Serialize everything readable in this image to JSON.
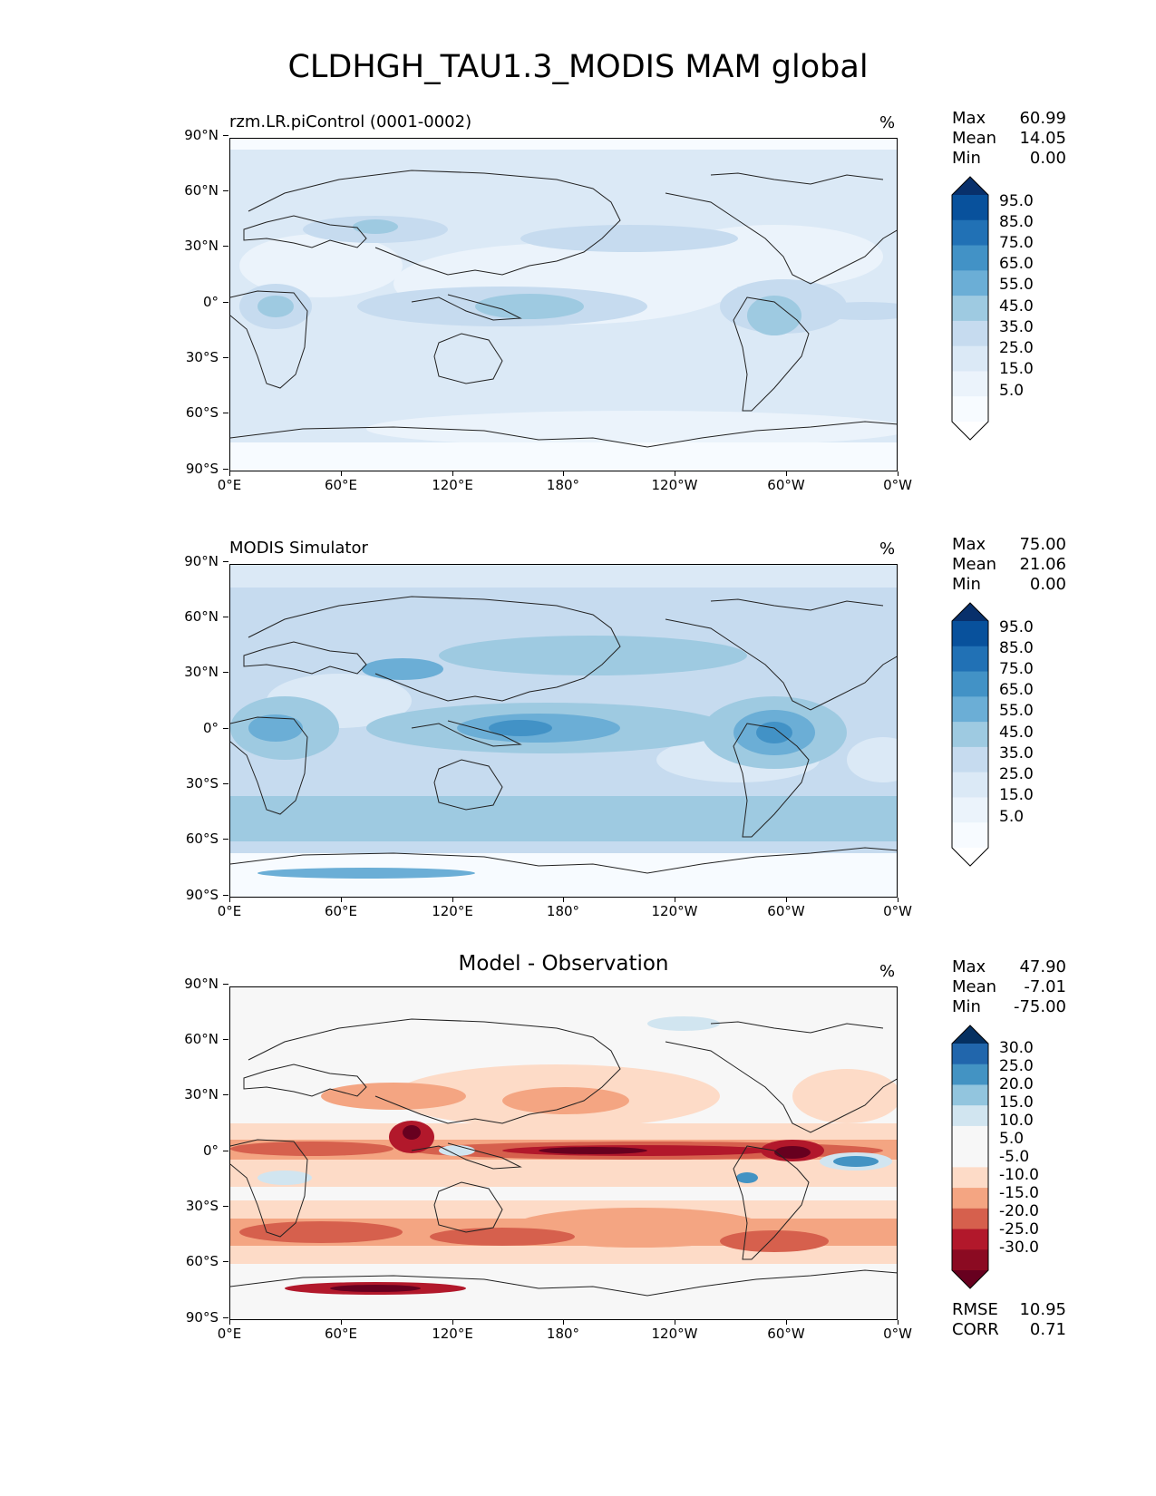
{
  "figure_title": "CLDHGH_TAU1.3_MODIS MAM global",
  "lat_ticks": [
    "90°N",
    "60°N",
    "30°N",
    "0°",
    "30°S",
    "60°S",
    "90°S"
  ],
  "lon_ticks": [
    "0°E",
    "60°E",
    "120°E",
    "180°",
    "120°W",
    "60°W",
    "0°W"
  ],
  "panels": [
    {
      "title_left": "rzm.LR.piControl (0001-0002)",
      "title_center": "",
      "units": "%",
      "stats": [
        {
          "label": "Max",
          "value": "60.99"
        },
        {
          "label": "Mean",
          "value": "14.05"
        },
        {
          "label": "Min",
          "value": "0.00"
        }
      ],
      "colorbar": {
        "labels": [
          "95.0",
          "85.0",
          "75.0",
          "65.0",
          "55.0",
          "45.0",
          "35.0",
          "25.0",
          "15.0",
          "5.0"
        ],
        "colors": [
          "#08306b",
          "#08519c",
          "#2171b5",
          "#4292c6",
          "#6baed6",
          "#9ecae1",
          "#c6dbef",
          "#dbe9f6",
          "#ebf3fb",
          "#f7fbff",
          "#ffffff"
        ]
      },
      "colors": {
        "base": "#dbe9f6",
        "light": "#ebf3fb",
        "mid": "#c6dbef",
        "strong": "#9ecae1",
        "deep": "#6baed6",
        "pale": "#f7fbff"
      }
    },
    {
      "title_left": "MODIS Simulator",
      "title_center": "",
      "units": "%",
      "stats": [
        {
          "label": "Max",
          "value": "75.00"
        },
        {
          "label": "Mean",
          "value": "21.06"
        },
        {
          "label": "Min",
          "value": "0.00"
        }
      ],
      "colorbar": {
        "labels": [
          "95.0",
          "85.0",
          "75.0",
          "65.0",
          "55.0",
          "45.0",
          "35.0",
          "25.0",
          "15.0",
          "5.0"
        ],
        "colors": [
          "#08306b",
          "#08519c",
          "#2171b5",
          "#4292c6",
          "#6baed6",
          "#9ecae1",
          "#c6dbef",
          "#dbe9f6",
          "#ebf3fb",
          "#f7fbff",
          "#ffffff"
        ]
      },
      "colors": {
        "base": "#c6dbef",
        "light": "#dbe9f6",
        "mid": "#9ecae1",
        "strong": "#6baed6",
        "deep": "#4292c6",
        "pale": "#f7fbff"
      }
    },
    {
      "title_left": "",
      "title_center": "Model - Observation",
      "units": "%",
      "stats": [
        {
          "label": "Max",
          "value": "47.90"
        },
        {
          "label": "Mean",
          "value": "-7.01"
        },
        {
          "label": "Min",
          "value": "-75.00"
        }
      ],
      "colorbar": {
        "labels": [
          "30.0",
          "25.0",
          "20.0",
          "15.0",
          "10.0",
          "5.0",
          "-5.0",
          "-10.0",
          "-15.0",
          "-20.0",
          "-25.0",
          "-30.0"
        ],
        "colors": [
          "#053061",
          "#2166ac",
          "#4393c3",
          "#92c5de",
          "#d1e5f0",
          "#f7f7f7",
          "#f7f7f7",
          "#fddbc7",
          "#f4a582",
          "#d6604d",
          "#b2182b",
          "#8b0a22",
          "#67001f"
        ]
      },
      "rmse": [
        {
          "label": "RMSE",
          "value": "10.95"
        },
        {
          "label": "CORR",
          "value": "0.71"
        }
      ],
      "colors": {
        "base": "#f7f7f7",
        "light": "#fddbc7",
        "mid": "#f4a582",
        "strong": "#d6604d",
        "deep": "#b2182b",
        "darkest": "#67001f",
        "blue": "#4393c3",
        "paleblue": "#d1e5f0"
      }
    }
  ]
}
